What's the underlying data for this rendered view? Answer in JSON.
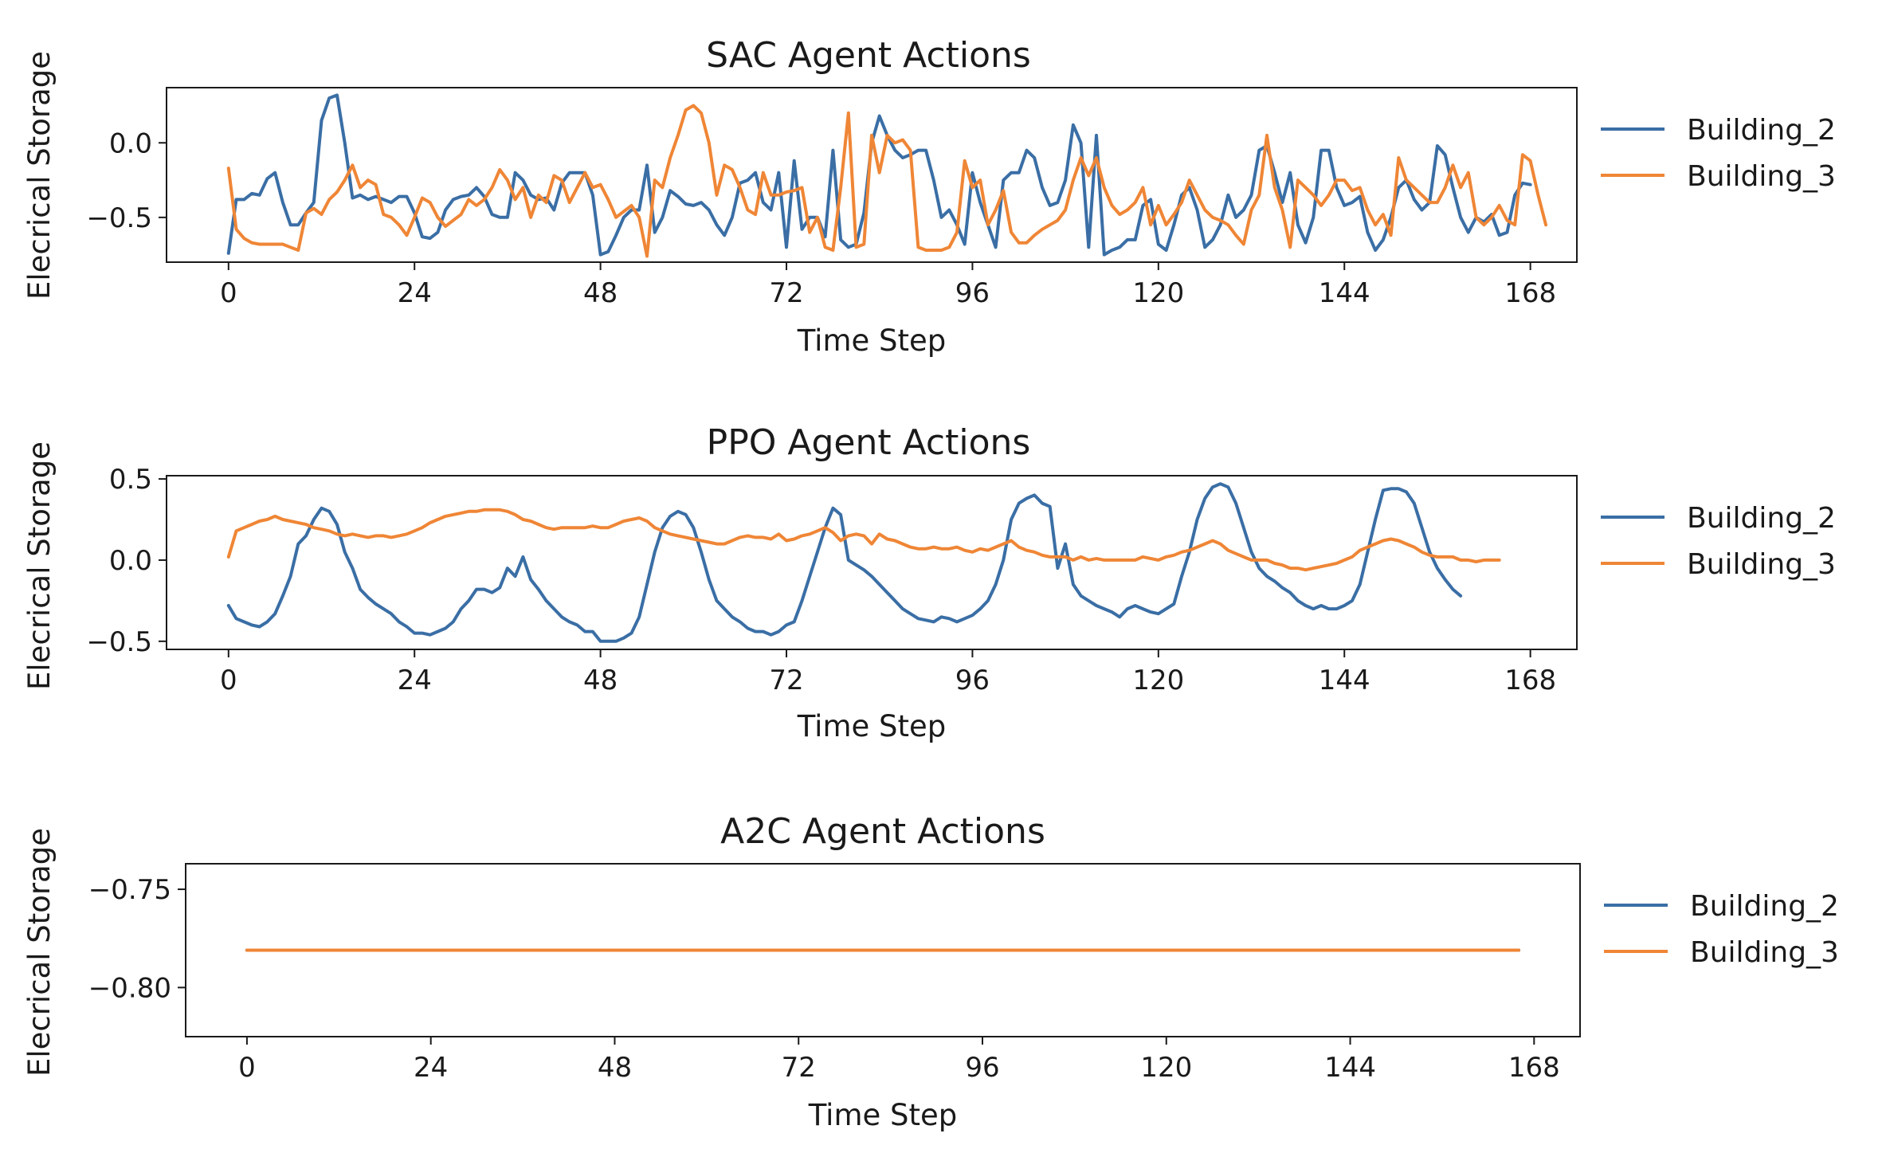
{
  "colors": {
    "Building_2": "#3a6ea5",
    "Building_3": "#ef8636",
    "axes": "#1a1a1a",
    "background": "#ffffff"
  },
  "chart_data": [
    {
      "type": "line",
      "title": "SAC Agent Actions",
      "xlabel": "Time Step",
      "ylabel": "Elecrical Storage",
      "xlim": [
        -8,
        174
      ],
      "ylim": [
        -0.8,
        0.37
      ],
      "xticks": [
        0,
        24,
        48,
        72,
        96,
        120,
        144,
        168
      ],
      "yticks": [
        0.0,
        -0.5
      ],
      "ytick_labels": [
        "0.0",
        "−0.5"
      ],
      "grid": false,
      "legend": "right",
      "series": [
        {
          "name": "Building_2",
          "color": "#3a6ea5",
          "x_start": 0,
          "x_step": 1,
          "values": [
            -0.74,
            -0.38,
            -0.38,
            -0.34,
            -0.35,
            -0.24,
            -0.2,
            -0.4,
            -0.55,
            -0.55,
            -0.47,
            -0.4,
            0.15,
            0.3,
            0.32,
            0.0,
            -0.37,
            -0.35,
            -0.38,
            -0.36,
            -0.38,
            -0.4,
            -0.36,
            -0.36,
            -0.47,
            -0.63,
            -0.64,
            -0.6,
            -0.45,
            -0.38,
            -0.36,
            -0.35,
            -0.3,
            -0.36,
            -0.48,
            -0.5,
            -0.5,
            -0.2,
            -0.25,
            -0.35,
            -0.38,
            -0.37,
            -0.45,
            -0.27,
            -0.2,
            -0.2,
            -0.2,
            -0.35,
            -0.75,
            -0.73,
            -0.62,
            -0.5,
            -0.45,
            -0.45,
            -0.15,
            -0.6,
            -0.5,
            -0.32,
            -0.36,
            -0.41,
            -0.42,
            -0.4,
            -0.45,
            -0.55,
            -0.62,
            -0.5,
            -0.27,
            -0.25,
            -0.2,
            -0.4,
            -0.45,
            -0.2,
            -0.7,
            -0.12,
            -0.58,
            -0.5,
            -0.5,
            -0.63,
            -0.05,
            -0.65,
            -0.7,
            -0.68,
            -0.47,
            0.0,
            0.18,
            0.05,
            -0.05,
            -0.1,
            -0.08,
            -0.05,
            -0.05,
            -0.25,
            -0.5,
            -0.45,
            -0.55,
            -0.68,
            -0.2,
            -0.4,
            -0.55,
            -0.7,
            -0.25,
            -0.2,
            -0.2,
            -0.05,
            -0.1,
            -0.3,
            -0.42,
            -0.4,
            -0.25,
            0.12,
            0.0,
            -0.7,
            0.05,
            -0.75,
            -0.72,
            -0.7,
            -0.65,
            -0.65,
            -0.42,
            -0.38,
            -0.68,
            -0.72,
            -0.55,
            -0.35,
            -0.3,
            -0.45,
            -0.7,
            -0.65,
            -0.55,
            -0.35,
            -0.5,
            -0.45,
            -0.35,
            -0.05,
            -0.02,
            -0.2,
            -0.4,
            -0.2,
            -0.55,
            -0.67,
            -0.5,
            -0.05,
            -0.05,
            -0.3,
            -0.42,
            -0.4,
            -0.36,
            -0.6,
            -0.72,
            -0.65,
            -0.5,
            -0.3,
            -0.25,
            -0.38,
            -0.45,
            -0.4,
            -0.02,
            -0.08,
            -0.3,
            -0.5,
            -0.6,
            -0.5,
            -0.53,
            -0.48,
            -0.62,
            -0.6,
            -0.35,
            -0.27,
            -0.28
          ]
        },
        {
          "name": "Building_3",
          "color": "#ef8636",
          "x_start": 0,
          "x_step": 1,
          "values": [
            -0.17,
            -0.58,
            -0.64,
            -0.67,
            -0.68,
            -0.68,
            -0.68,
            -0.68,
            -0.7,
            -0.72,
            -0.47,
            -0.44,
            -0.48,
            -0.38,
            -0.33,
            -0.25,
            -0.15,
            -0.3,
            -0.25,
            -0.28,
            -0.48,
            -0.5,
            -0.55,
            -0.62,
            -0.5,
            -0.37,
            -0.4,
            -0.5,
            -0.56,
            -0.52,
            -0.48,
            -0.38,
            -0.42,
            -0.38,
            -0.3,
            -0.18,
            -0.25,
            -0.38,
            -0.3,
            -0.5,
            -0.35,
            -0.4,
            -0.22,
            -0.25,
            -0.4,
            -0.3,
            -0.2,
            -0.3,
            -0.28,
            -0.38,
            -0.5,
            -0.46,
            -0.42,
            -0.5,
            -0.76,
            -0.25,
            -0.3,
            -0.1,
            0.05,
            0.22,
            0.25,
            0.2,
            0.0,
            -0.35,
            -0.15,
            -0.18,
            -0.3,
            -0.45,
            -0.48,
            -0.2,
            -0.35,
            -0.35,
            -0.33,
            -0.32,
            -0.3,
            -0.6,
            -0.5,
            -0.7,
            -0.72,
            -0.3,
            0.2,
            -0.7,
            -0.68,
            0.05,
            -0.2,
            0.05,
            0.0,
            0.02,
            -0.05,
            -0.7,
            -0.72,
            -0.72,
            -0.72,
            -0.7,
            -0.6,
            -0.12,
            -0.3,
            -0.25,
            -0.55,
            -0.45,
            -0.32,
            -0.6,
            -0.67,
            -0.67,
            -0.62,
            -0.58,
            -0.55,
            -0.52,
            -0.45,
            -0.25,
            -0.1,
            -0.22,
            -0.1,
            -0.3,
            -0.42,
            -0.48,
            -0.45,
            -0.4,
            -0.3,
            -0.55,
            -0.42,
            -0.55,
            -0.48,
            -0.4,
            -0.25,
            -0.35,
            -0.45,
            -0.5,
            -0.52,
            -0.55,
            -0.62,
            -0.68,
            -0.45,
            -0.35,
            0.05,
            -0.3,
            -0.45,
            -0.7,
            -0.25,
            -0.3,
            -0.35,
            -0.42,
            -0.35,
            -0.25,
            -0.25,
            -0.32,
            -0.3,
            -0.45,
            -0.55,
            -0.48,
            -0.62,
            -0.1,
            -0.25,
            -0.3,
            -0.35,
            -0.4,
            -0.4,
            -0.3,
            -0.15,
            -0.3,
            -0.2,
            -0.5,
            -0.55,
            -0.5,
            -0.42,
            -0.52,
            -0.55,
            -0.08,
            -0.12,
            -0.35,
            -0.55
          ]
        }
      ]
    },
    {
      "type": "line",
      "title": "PPO Agent Actions",
      "xlabel": "Time Step",
      "ylabel": "Elecrical Storage",
      "xlim": [
        -8,
        174
      ],
      "ylim": [
        -0.55,
        0.52
      ],
      "xticks": [
        0,
        24,
        48,
        72,
        96,
        120,
        144,
        168
      ],
      "yticks": [
        0.5,
        0.0,
        -0.5
      ],
      "ytick_labels": [
        "0.5",
        "0.0",
        "−0.5"
      ],
      "grid": false,
      "legend": "right",
      "series": [
        {
          "name": "Building_2",
          "color": "#3a6ea5",
          "x_start": 0,
          "x_step": 1,
          "values": [
            -0.28,
            -0.36,
            -0.38,
            -0.4,
            -0.41,
            -0.38,
            -0.33,
            -0.22,
            -0.1,
            0.1,
            0.15,
            0.25,
            0.32,
            0.3,
            0.22,
            0.05,
            -0.05,
            -0.18,
            -0.23,
            -0.27,
            -0.3,
            -0.33,
            -0.38,
            -0.41,
            -0.45,
            -0.45,
            -0.46,
            -0.44,
            -0.42,
            -0.38,
            -0.3,
            -0.25,
            -0.18,
            -0.18,
            -0.2,
            -0.17,
            -0.05,
            -0.1,
            0.02,
            -0.12,
            -0.18,
            -0.25,
            -0.3,
            -0.35,
            -0.38,
            -0.4,
            -0.44,
            -0.44,
            -0.5,
            -0.5,
            -0.5,
            -0.48,
            -0.45,
            -0.35,
            -0.15,
            0.05,
            0.2,
            0.27,
            0.3,
            0.28,
            0.2,
            0.05,
            -0.12,
            -0.25,
            -0.3,
            -0.35,
            -0.38,
            -0.42,
            -0.44,
            -0.44,
            -0.46,
            -0.44,
            -0.4,
            -0.38,
            -0.25,
            -0.1,
            0.05,
            0.2,
            0.32,
            0.28,
            0.0,
            -0.03,
            -0.06,
            -0.1,
            -0.15,
            -0.2,
            -0.25,
            -0.3,
            -0.33,
            -0.36,
            -0.37,
            -0.38,
            -0.35,
            -0.36,
            -0.38,
            -0.36,
            -0.34,
            -0.3,
            -0.25,
            -0.15,
            0.0,
            0.25,
            0.35,
            0.38,
            0.4,
            0.35,
            0.33,
            -0.05,
            0.1,
            -0.15,
            -0.22,
            -0.25,
            -0.28,
            -0.3,
            -0.32,
            -0.35,
            -0.3,
            -0.28,
            -0.3,
            -0.32,
            -0.33,
            -0.3,
            -0.27,
            -0.1,
            0.05,
            0.25,
            0.38,
            0.45,
            0.47,
            0.45,
            0.35,
            0.2,
            0.05,
            -0.05,
            -0.1,
            -0.13,
            -0.17,
            -0.2,
            -0.25,
            -0.28,
            -0.3,
            -0.28,
            -0.3,
            -0.3,
            -0.28,
            -0.25,
            -0.15,
            0.05,
            0.25,
            0.43,
            0.44,
            0.44,
            0.42,
            0.35,
            0.2,
            0.05,
            -0.05,
            -0.12,
            -0.18,
            -0.22
          ]
        },
        {
          "name": "Building_3",
          "color": "#ef8636",
          "x_start": 0,
          "x_step": 1,
          "values": [
            0.02,
            0.18,
            0.2,
            0.22,
            0.24,
            0.25,
            0.27,
            0.25,
            0.24,
            0.23,
            0.22,
            0.2,
            0.19,
            0.18,
            0.16,
            0.15,
            0.16,
            0.15,
            0.14,
            0.15,
            0.15,
            0.14,
            0.15,
            0.16,
            0.18,
            0.2,
            0.23,
            0.25,
            0.27,
            0.28,
            0.29,
            0.3,
            0.3,
            0.31,
            0.31,
            0.31,
            0.3,
            0.28,
            0.25,
            0.24,
            0.22,
            0.2,
            0.19,
            0.2,
            0.2,
            0.2,
            0.2,
            0.21,
            0.2,
            0.2,
            0.22,
            0.24,
            0.25,
            0.26,
            0.24,
            0.2,
            0.18,
            0.16,
            0.15,
            0.14,
            0.13,
            0.12,
            0.11,
            0.1,
            0.1,
            0.12,
            0.14,
            0.15,
            0.14,
            0.14,
            0.13,
            0.16,
            0.12,
            0.13,
            0.15,
            0.16,
            0.18,
            0.2,
            0.17,
            0.12,
            0.15,
            0.16,
            0.15,
            0.1,
            0.16,
            0.13,
            0.12,
            0.1,
            0.08,
            0.07,
            0.07,
            0.08,
            0.07,
            0.07,
            0.08,
            0.06,
            0.05,
            0.07,
            0.06,
            0.08,
            0.1,
            0.12,
            0.08,
            0.06,
            0.05,
            0.03,
            0.02,
            0.02,
            0.02,
            0.0,
            0.02,
            0.0,
            0.01,
            0.0,
            0.0,
            0.0,
            0.0,
            0.0,
            0.02,
            0.01,
            0.0,
            0.02,
            0.03,
            0.05,
            0.06,
            0.08,
            0.1,
            0.12,
            0.1,
            0.06,
            0.04,
            0.02,
            0.0,
            0.0,
            0.0,
            -0.02,
            -0.03,
            -0.05,
            -0.05,
            -0.06,
            -0.05,
            -0.04,
            -0.03,
            -0.02,
            0.0,
            0.02,
            0.06,
            0.08,
            0.1,
            0.12,
            0.13,
            0.12,
            0.1,
            0.08,
            0.05,
            0.03,
            0.02,
            0.02,
            0.02,
            0.0,
            0.0,
            -0.01,
            0.0,
            0.0,
            0.0
          ]
        }
      ]
    },
    {
      "type": "line",
      "title": "A2C Agent Actions",
      "xlabel": "Time Step",
      "ylabel": "Elecrical Storage",
      "xlim": [
        -8,
        174
      ],
      "ylim": [
        -0.825,
        -0.737
      ],
      "xticks": [
        0,
        24,
        48,
        72,
        96,
        120,
        144,
        168
      ],
      "yticks": [
        -0.75,
        -0.8
      ],
      "ytick_labels": [
        "−0.75",
        "−0.80"
      ],
      "grid": false,
      "legend": "right",
      "series": [
        {
          "name": "Building_2",
          "color": "#3a6ea5",
          "x": [
            0,
            166
          ],
          "values": [
            -0.781,
            -0.781
          ]
        },
        {
          "name": "Building_3",
          "color": "#ef8636",
          "x": [
            0,
            166
          ],
          "values": [
            -0.781,
            -0.781
          ]
        }
      ]
    }
  ]
}
